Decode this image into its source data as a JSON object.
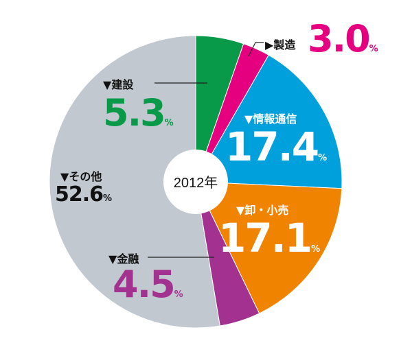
{
  "chart_data": {
    "type": "pie",
    "title": "2012年",
    "unit": "%",
    "start": "top",
    "direction": "clockwise",
    "slices": [
      {
        "label": "建設",
        "value": 5.3,
        "value_text": "5.3",
        "color": "#089a48"
      },
      {
        "label": "製造",
        "value": 3.0,
        "value_text": "3.0",
        "color": "#e4007f"
      },
      {
        "label": "情報通信",
        "value": 17.4,
        "value_text": "17.4",
        "color": "#00a0dc"
      },
      {
        "label": "卸・小売",
        "value": 17.1,
        "value_text": "17.1",
        "color": "#f08300"
      },
      {
        "label": "金融",
        "value": 4.5,
        "value_text": "4.5",
        "color": "#a3318f"
      },
      {
        "label": "その他",
        "value": 52.6,
        "value_text": "52.6",
        "color": "#c1c8cf"
      }
    ],
    "marker_down": "▼",
    "marker_right": "▶"
  }
}
